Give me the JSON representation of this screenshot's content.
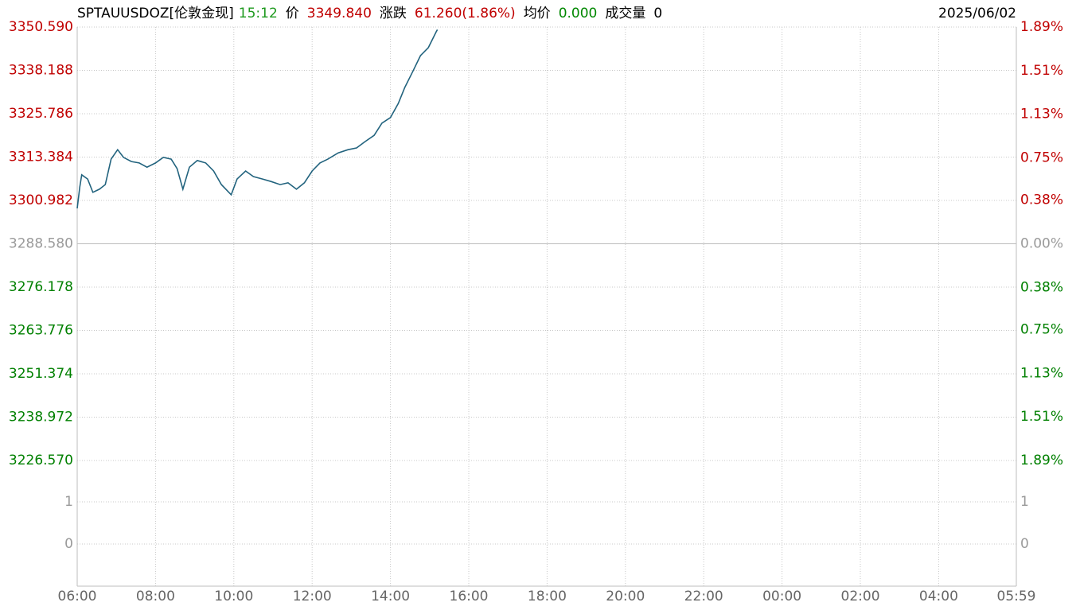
{
  "chart_data": [
    {
      "type": "line",
      "title": "SPTAUUSDOZ[伦敦金现]",
      "time": "15:12",
      "time_color": "#1f9a1f",
      "stats": [
        {
          "label": "价",
          "value": "3349.840",
          "color": "#c00000"
        },
        {
          "label": "涨跌",
          "value": "61.260(1.86%)",
          "color": "#c00000"
        },
        {
          "label": "均价",
          "value": "0.000",
          "color": "#008800"
        },
        {
          "label": "成交量",
          "value": "0",
          "color": "#000000"
        }
      ],
      "date": "2025/06/02",
      "x": [
        "06:00",
        "06:04",
        "06:07",
        "06:16",
        "06:24",
        "06:34",
        "06:43",
        "06:52",
        "07:02",
        "07:11",
        "07:23",
        "07:35",
        "07:47",
        "08:00",
        "08:12",
        "08:24",
        "08:33",
        "08:42",
        "08:52",
        "09:04",
        "09:17",
        "09:29",
        "09:41",
        "09:56",
        "10:05",
        "10:18",
        "10:30",
        "10:44",
        "10:57",
        "11:11",
        "11:23",
        "11:36",
        "11:48",
        "12:00",
        "12:12",
        "12:24",
        "12:40",
        "12:55",
        "13:08",
        "13:21",
        "13:35",
        "13:47",
        "14:00",
        "14:12",
        "14:22",
        "14:34",
        "14:46",
        "14:58",
        "15:10",
        "15:12"
      ],
      "values": [
        3298.7,
        3304.9,
        3308.3,
        3307.1,
        3303.3,
        3304.2,
        3305.5,
        3312.8,
        3315.5,
        3313.3,
        3312.1,
        3311.7,
        3310.5,
        3311.7,
        3313.3,
        3312.8,
        3310.1,
        3304.2,
        3310.5,
        3312.4,
        3311.7,
        3309.4,
        3305.5,
        3302.6,
        3307.1,
        3309.4,
        3307.8,
        3307.1,
        3306.4,
        3305.5,
        3306.0,
        3304.2,
        3306.0,
        3309.4,
        3311.7,
        3312.8,
        3314.6,
        3315.5,
        3316.0,
        3317.8,
        3319.6,
        3323.1,
        3324.7,
        3328.7,
        3333.3,
        3337.8,
        3342.4,
        3344.7,
        3349.2,
        3349.84
      ],
      "color": "#22637e",
      "ylim": [
        3226.57,
        3350.59
      ],
      "yticks": [
        {
          "value": 3350.59,
          "label": "3350.590"
        },
        {
          "value": 3338.188,
          "label": "3338.188"
        },
        {
          "value": 3325.786,
          "label": "3325.786"
        },
        {
          "value": 3313.384,
          "label": "3313.384"
        },
        {
          "value": 3300.982,
          "label": "3300.982"
        },
        {
          "value": 3288.58,
          "label": "3288.580"
        },
        {
          "value": 3276.178,
          "label": "3276.178"
        },
        {
          "value": 3263.776,
          "label": "3263.776"
        },
        {
          "value": 3251.374,
          "label": "3251.374"
        },
        {
          "value": 3238.972,
          "label": "3238.972"
        },
        {
          "value": 3226.57,
          "label": "3226.570"
        }
      ],
      "y2lim": [
        -1.89,
        1.89
      ],
      "y2ticks": [
        {
          "value": 1.89,
          "label": "1.89%"
        },
        {
          "value": 1.51,
          "label": "1.51%"
        },
        {
          "value": 1.13,
          "label": "1.13%"
        },
        {
          "value": 0.75,
          "label": "0.75%"
        },
        {
          "value": 0.38,
          "label": "0.38%"
        },
        {
          "value": 0,
          "label": "0.00%"
        },
        {
          "value": -0.38,
          "label": "0.38%"
        },
        {
          "value": -0.75,
          "label": "0.75%"
        },
        {
          "value": -1.13,
          "label": "1.13%"
        },
        {
          "value": -1.51,
          "label": "1.51%"
        },
        {
          "value": -1.89,
          "label": "1.89%"
        }
      ],
      "xlim": [
        "06:00",
        "05:59"
      ],
      "xticks": [
        "06:00",
        "08:00",
        "10:00",
        "12:00",
        "14:00",
        "16:00",
        "18:00",
        "20:00",
        "22:00",
        "00:00",
        "02:00",
        "04:00",
        "05:59"
      ],
      "grid": true,
      "up_color": "#c00000",
      "down_color": "#008000",
      "flat_color": "#9a9a9a"
    },
    {
      "type": "volume",
      "ylim": [
        -1,
        1.5
      ],
      "yticks": [
        1,
        0
      ],
      "grid": true,
      "tick_color": "#9a9a9a"
    }
  ]
}
